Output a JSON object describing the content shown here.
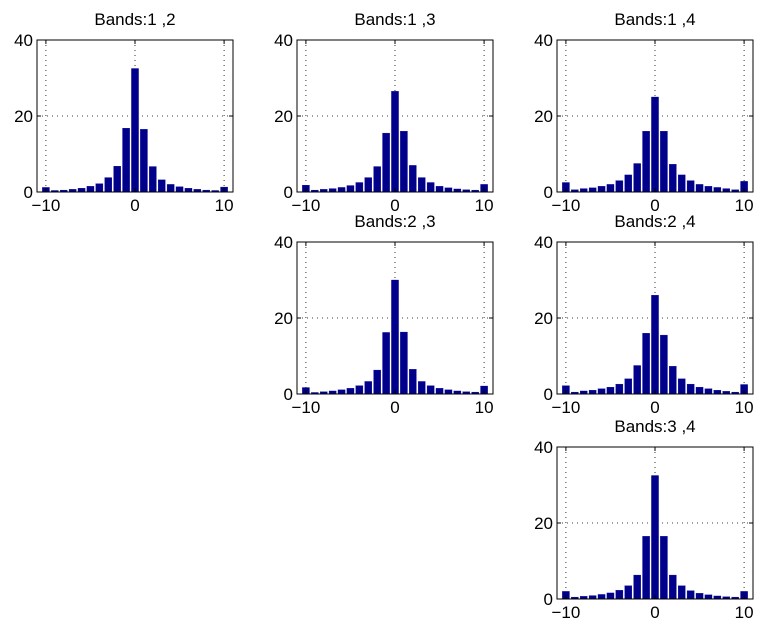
{
  "colors": {
    "bar": "#00008b",
    "axis": "#000000",
    "grid": "#000000",
    "background": "#ffffff"
  },
  "chart_data": [
    {
      "type": "bar",
      "title": "Bands:1 ,2",
      "xlim": [
        -11,
        11
      ],
      "ylim": [
        0,
        40
      ],
      "xticks": [
        -10,
        0,
        10
      ],
      "yticks": [
        0,
        20,
        40
      ],
      "xtick_labels": [
        "−10",
        "0",
        "10"
      ],
      "ytick_labels": [
        "0",
        "20",
        "40"
      ],
      "grid": true,
      "x": [
        -10,
        -9,
        -8,
        -7,
        -6,
        -5,
        -4,
        -3,
        -2,
        -1,
        0,
        1,
        2,
        3,
        4,
        5,
        6,
        7,
        8,
        9,
        10
      ],
      "values": [
        1.2,
        0.4,
        0.5,
        0.7,
        1.0,
        1.5,
        2.2,
        3.8,
        6.8,
        16.8,
        32.5,
        16.5,
        6.7,
        3.2,
        2.0,
        1.4,
        1.0,
        0.7,
        0.5,
        0.4,
        1.3
      ]
    },
    {
      "type": "bar",
      "title": "Bands:1 ,3",
      "xlim": [
        -11,
        11
      ],
      "ylim": [
        0,
        40
      ],
      "xticks": [
        -10,
        0,
        10
      ],
      "yticks": [
        0,
        20,
        40
      ],
      "xtick_labels": [
        "−10",
        "0",
        "10"
      ],
      "ytick_labels": [
        "0",
        "20",
        "40"
      ],
      "grid": true,
      "x": [
        -10,
        -9,
        -8,
        -7,
        -6,
        -5,
        -4,
        -3,
        -2,
        -1,
        0,
        1,
        2,
        3,
        4,
        5,
        6,
        7,
        8,
        9,
        10
      ],
      "values": [
        1.8,
        0.5,
        0.7,
        0.9,
        1.2,
        1.7,
        2.5,
        3.8,
        6.7,
        15.5,
        26.5,
        16.0,
        7.0,
        3.8,
        2.5,
        1.5,
        1.1,
        0.8,
        0.6,
        0.5,
        2.0
      ]
    },
    {
      "type": "bar",
      "title": "Bands:1 ,4",
      "xlim": [
        -11,
        11
      ],
      "ylim": [
        0,
        40
      ],
      "xticks": [
        -10,
        0,
        10
      ],
      "yticks": [
        0,
        20,
        40
      ],
      "xtick_labels": [
        "−10",
        "0",
        "10"
      ],
      "ytick_labels": [
        "0",
        "20",
        "40"
      ],
      "grid": true,
      "x": [
        -10,
        -9,
        -8,
        -7,
        -6,
        -5,
        -4,
        -3,
        -2,
        -1,
        0,
        1,
        2,
        3,
        4,
        5,
        6,
        7,
        8,
        9,
        10
      ],
      "values": [
        2.5,
        0.6,
        0.9,
        1.1,
        1.5,
        2.0,
        3.0,
        4.5,
        7.5,
        16.0,
        25.0,
        16.0,
        7.3,
        4.5,
        3.0,
        2.0,
        1.5,
        1.2,
        0.9,
        0.6,
        2.8
      ]
    },
    {
      "type": "bar",
      "title": "Bands:2 ,3",
      "xlim": [
        -11,
        11
      ],
      "ylim": [
        0,
        40
      ],
      "xticks": [
        -10,
        0,
        10
      ],
      "yticks": [
        0,
        20,
        40
      ],
      "xtick_labels": [
        "−10",
        "0",
        "10"
      ],
      "ytick_labels": [
        "0",
        "20",
        "40"
      ],
      "grid": true,
      "x": [
        -10,
        -9,
        -8,
        -7,
        -6,
        -5,
        -4,
        -3,
        -2,
        -1,
        0,
        1,
        2,
        3,
        4,
        5,
        6,
        7,
        8,
        9,
        10
      ],
      "values": [
        1.7,
        0.4,
        0.6,
        0.8,
        1.1,
        1.5,
        2.2,
        3.3,
        6.3,
        16.2,
        30.0,
        16.3,
        6.5,
        3.3,
        2.2,
        1.5,
        1.1,
        0.8,
        0.6,
        0.5,
        2.1
      ]
    },
    {
      "type": "bar",
      "title": "Bands:2 ,4",
      "xlim": [
        -11,
        11
      ],
      "ylim": [
        0,
        40
      ],
      "xticks": [
        -10,
        0,
        10
      ],
      "yticks": [
        0,
        20,
        40
      ],
      "xtick_labels": [
        "−10",
        "0",
        "10"
      ],
      "ytick_labels": [
        "0",
        "20",
        "40"
      ],
      "grid": true,
      "x": [
        -10,
        -9,
        -8,
        -7,
        -6,
        -5,
        -4,
        -3,
        -2,
        -1,
        0,
        1,
        2,
        3,
        4,
        5,
        6,
        7,
        8,
        9,
        10
      ],
      "values": [
        2.2,
        0.5,
        0.8,
        1.0,
        1.4,
        1.8,
        2.6,
        4.0,
        7.5,
        16.0,
        26.0,
        15.5,
        7.3,
        4.0,
        2.6,
        1.8,
        1.4,
        1.0,
        0.7,
        0.5,
        2.5
      ]
    },
    {
      "type": "bar",
      "title": "Bands:3 ,4",
      "xlim": [
        -11,
        11
      ],
      "ylim": [
        0,
        40
      ],
      "xticks": [
        -10,
        0,
        10
      ],
      "yticks": [
        0,
        20,
        40
      ],
      "xtick_labels": [
        "−10",
        "0",
        "10"
      ],
      "ytick_labels": [
        "0",
        "20",
        "40"
      ],
      "grid": true,
      "x": [
        -10,
        -9,
        -8,
        -7,
        -6,
        -5,
        -4,
        -3,
        -2,
        -1,
        0,
        1,
        2,
        3,
        4,
        5,
        6,
        7,
        8,
        9,
        10
      ],
      "values": [
        2.0,
        0.5,
        0.7,
        0.9,
        1.2,
        1.6,
        2.3,
        3.5,
        6.3,
        16.5,
        32.5,
        16.5,
        6.3,
        3.5,
        2.2,
        1.5,
        1.1,
        0.8,
        0.6,
        0.5,
        2.0
      ]
    }
  ]
}
